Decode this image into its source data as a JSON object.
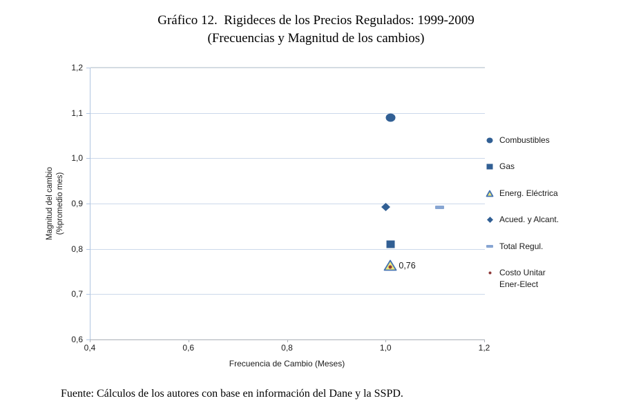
{
  "title": {
    "line1": "Gráfico 12.  Rigideces de los Precios Regulados: 1999-2009",
    "line2": "(Frecuencias y Magnitud de los cambios)"
  },
  "source": "Fuente: Cálculos de los autores con base en información del Dane y la SSPD.",
  "chart_data": {
    "type": "scatter",
    "title": "Gráfico 12. Rigideces de los Precios Regulados: 1999-2009 (Frecuencias y Magnitud de los cambios)",
    "xlabel": "Frecuencia de Cambio (Meses)",
    "ylabel_line1": "Magnitud del cambio",
    "ylabel_line2": "(%promedio mes)",
    "xlim": [
      0.4,
      1.2
    ],
    "ylim": [
      0.6,
      1.2
    ],
    "xticks": [
      {
        "v": 0.4,
        "label": "0,4"
      },
      {
        "v": 0.6,
        "label": "0,6"
      },
      {
        "v": 0.8,
        "label": "0,8"
      },
      {
        "v": 1.0,
        "label": "1,0"
      },
      {
        "v": 1.2,
        "label": "1,2"
      }
    ],
    "yticks": [
      {
        "v": 0.6,
        "label": "0,6"
      },
      {
        "v": 0.7,
        "label": "0,7"
      },
      {
        "v": 0.8,
        "label": "0,8"
      },
      {
        "v": 0.9,
        "label": "0,9"
      },
      {
        "v": 1.0,
        "label": "1,0"
      },
      {
        "v": 1.1,
        "label": "1,1"
      },
      {
        "v": 1.2,
        "label": "1,2"
      }
    ],
    "grid": "horizontal",
    "legend_position": "right",
    "series": [
      {
        "name": "Combustibles",
        "marker": "circle",
        "fill": "#315F94",
        "stroke": "#315F94",
        "points": [
          {
            "x": 1.01,
            "y": 1.09
          }
        ]
      },
      {
        "name": "Gas",
        "marker": "square",
        "fill": "#315F94",
        "stroke": "#315F94",
        "points": [
          {
            "x": 1.01,
            "y": 0.81
          }
        ]
      },
      {
        "name": "Energ. Eléctrica",
        "marker": "triangle",
        "fill": "#EEE97B",
        "stroke": "#4472B0",
        "points": [
          {
            "x": 1.01,
            "y": 0.764,
            "label": "0,76"
          }
        ]
      },
      {
        "name": "Acued. y Alcant.",
        "marker": "diamond",
        "fill": "#315F94",
        "stroke": "#315F94",
        "points": [
          {
            "x": 1.0,
            "y": 0.892
          }
        ]
      },
      {
        "name": "Total Regul.",
        "marker": "dash",
        "fill": "#87A5D2",
        "stroke": "#87A5D2",
        "points": [
          {
            "x": 1.11,
            "y": 0.892
          }
        ]
      },
      {
        "name": "Costo Unitar Ener-Elect",
        "marker": "dot",
        "fill": "#8E3A39",
        "stroke": "#8E3A39",
        "points": [
          {
            "x": 1.01,
            "y": 0.76
          }
        ]
      }
    ]
  }
}
